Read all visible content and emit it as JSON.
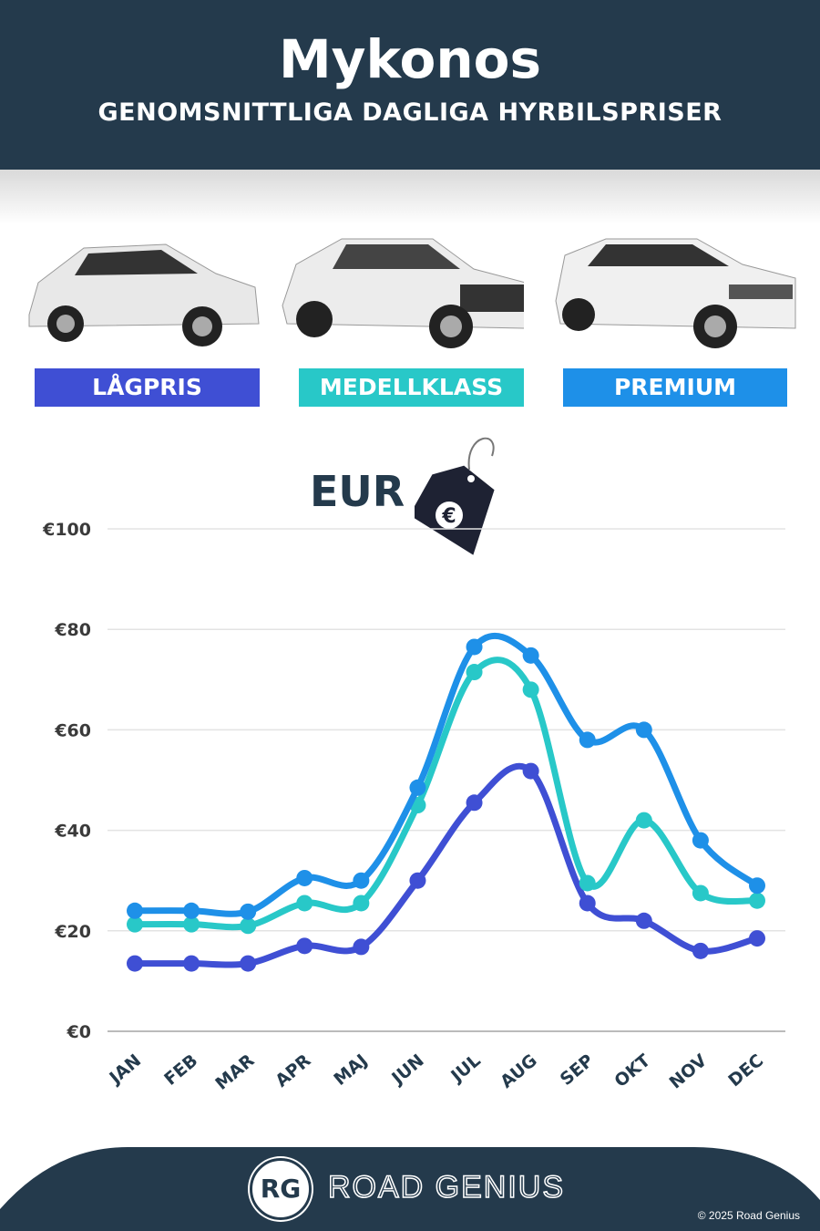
{
  "header": {
    "title": "Mykonos",
    "subtitle": "GENOMSNITTLIGA DAGLIGA HYRBILSPRISER"
  },
  "categories": [
    {
      "label": "LÅGPRIS",
      "color": "#3f4fd4"
    },
    {
      "label": "MEDELLKLASS",
      "color": "#28c8c8"
    },
    {
      "label": "PREMIUM",
      "color": "#1e90e8"
    }
  ],
  "currency": {
    "label": "EUR",
    "icon": "euro-price-tag-icon"
  },
  "chart_data": {
    "type": "line",
    "categories": [
      "JAN",
      "FEB",
      "MAR",
      "APR",
      "MAJ",
      "JUN",
      "JUL",
      "AUG",
      "SEP",
      "OKT",
      "NOV",
      "DEC"
    ],
    "yticks": [
      "€0",
      "€20",
      "€40",
      "€60",
      "€80",
      "€100"
    ],
    "ylim": [
      0,
      100
    ],
    "grid": true,
    "series": [
      {
        "name": "LÅGPRIS",
        "color": "#3f4fd4",
        "values": [
          13.5,
          13.5,
          13.5,
          17,
          16.8,
          30,
          45.5,
          51.8,
          25.5,
          22,
          16,
          18.5
        ]
      },
      {
        "name": "MEDELLKLASS",
        "color": "#28c8c8",
        "values": [
          21.3,
          21.3,
          21,
          25.5,
          25.5,
          45,
          71.5,
          68,
          29.5,
          42,
          27.5,
          26
        ]
      },
      {
        "name": "PREMIUM",
        "color": "#1e90e8",
        "values": [
          24,
          24,
          23.8,
          30.5,
          30,
          48.5,
          76.5,
          74.8,
          58,
          60,
          38,
          29
        ]
      }
    ]
  },
  "footer": {
    "brand": "ROAD GENIUS",
    "logo": "RG",
    "copyright": "© 2025 Road Genius"
  }
}
